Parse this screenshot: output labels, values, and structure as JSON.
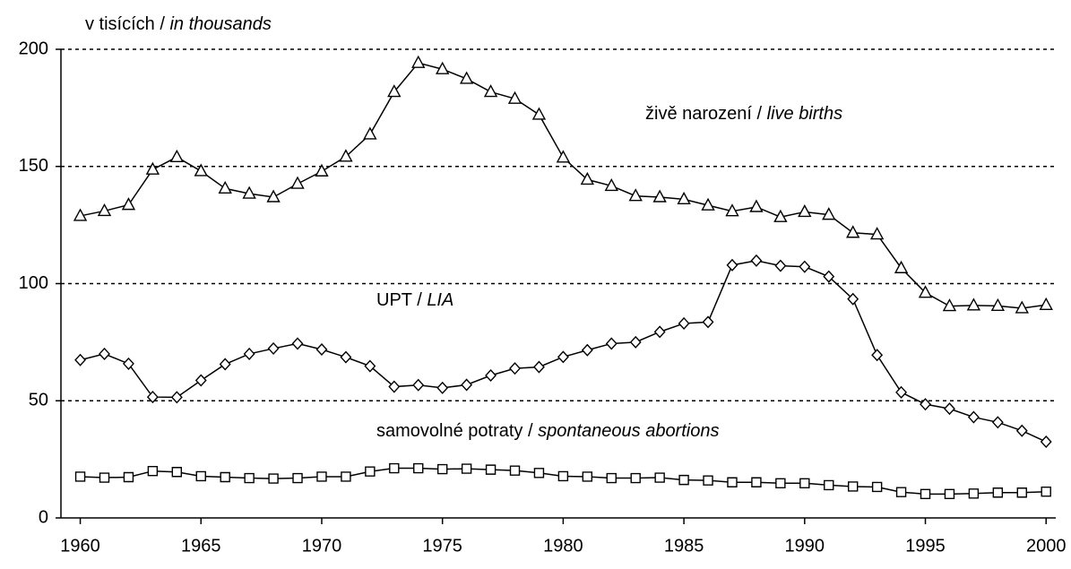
{
  "chart_data": {
    "type": "line",
    "ylabel": {
      "plain": "v tisících / ",
      "italic": "in thousands"
    },
    "x": [
      1960,
      1961,
      1962,
      1963,
      1964,
      1965,
      1966,
      1967,
      1968,
      1969,
      1970,
      1971,
      1972,
      1973,
      1974,
      1975,
      1976,
      1977,
      1978,
      1979,
      1980,
      1981,
      1982,
      1983,
      1984,
      1985,
      1986,
      1987,
      1988,
      1989,
      1990,
      1991,
      1992,
      1993,
      1994,
      1995,
      1996,
      1997,
      1998,
      1999,
      2000
    ],
    "series": [
      {
        "label": {
          "plain": "živě narození / ",
          "italic": "live births"
        },
        "marker": "triangle",
        "color": "#000000",
        "values": [
          128.9,
          131.0,
          133.6,
          148.7,
          154.0,
          148.0,
          140.6,
          138.4,
          136.9,
          142.6,
          147.9,
          154.2,
          163.7,
          181.8,
          194.2,
          191.5,
          187.4,
          181.8,
          178.9,
          172.1,
          153.8,
          144.4,
          141.7,
          137.4,
          136.9,
          136.0,
          133.4,
          130.9,
          132.7,
          128.4,
          130.6,
          129.4,
          121.7,
          121.0,
          106.6,
          96.1,
          90.4,
          90.7,
          90.5,
          89.5,
          90.9
        ]
      },
      {
        "label": {
          "plain": "UPT / ",
          "italic": "LIA"
        },
        "marker": "diamond",
        "color": "#000000",
        "values": [
          67.4,
          70.0,
          65.8,
          51.6,
          51.5,
          58.7,
          65.6,
          70.0,
          72.3,
          74.4,
          71.9,
          68.6,
          64.8,
          56.0,
          56.7,
          55.5,
          56.8,
          60.8,
          63.8,
          64.4,
          68.7,
          71.6,
          74.4,
          75.0,
          79.4,
          83.0,
          83.6,
          107.9,
          109.8,
          107.6,
          107.2,
          103.0,
          93.4,
          69.5,
          53.6,
          48.5,
          46.6,
          43.0,
          40.8,
          37.2,
          32.5
        ]
      },
      {
        "label": {
          "plain": "samovolné potraty / ",
          "italic": "spontaneous abortions"
        },
        "marker": "square",
        "color": "#000000",
        "values": [
          17.6,
          17.2,
          17.4,
          20.0,
          19.6,
          17.8,
          17.4,
          17.0,
          16.8,
          17.0,
          17.6,
          17.6,
          19.8,
          21.2,
          21.2,
          20.8,
          21.0,
          20.6,
          20.2,
          19.2,
          17.8,
          17.6,
          17.0,
          17.0,
          17.2,
          16.2,
          16.0,
          15.2,
          15.2,
          14.8,
          14.8,
          14.0,
          13.4,
          13.2,
          11.0,
          10.2,
          10.2,
          10.4,
          10.8,
          10.8,
          11.2
        ]
      }
    ],
    "xlim": [
      1959.2,
      2000.4
    ],
    "xticks": [
      1960,
      1965,
      1970,
      1975,
      1980,
      1985,
      1990,
      1995,
      2000
    ],
    "ylim": [
      0,
      200
    ],
    "yticks": [
      0,
      50,
      100,
      150,
      200
    ],
    "grid": true
  }
}
